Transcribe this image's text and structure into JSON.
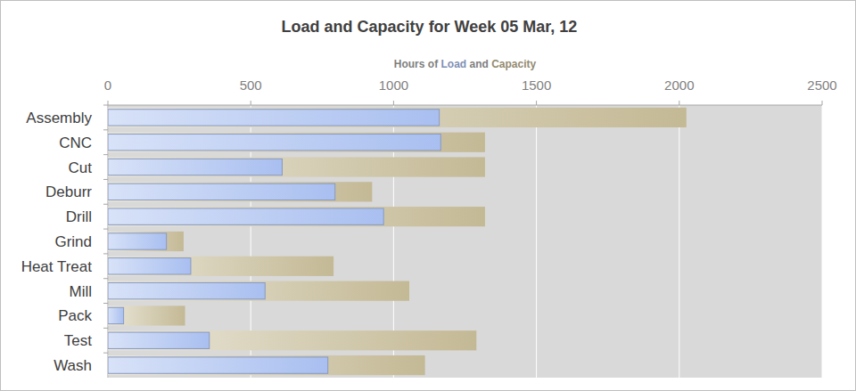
{
  "chart_data": {
    "type": "bar",
    "orientation": "horizontal",
    "title": "Load and Capacity for Week 05 Mar, 12",
    "x_label": "Hours of Load and Capacity",
    "categories": [
      "Assembly",
      "CNC",
      "Cut",
      "Deburr",
      "Drill",
      "Grind",
      "Heat Treat",
      "Mill",
      "Pack",
      "Test",
      "Wash"
    ],
    "series": [
      {
        "name": "Load",
        "color": "#a9bff0",
        "values": [
          1160,
          1165,
          610,
          795,
          965,
          205,
          290,
          550,
          55,
          355,
          770
        ]
      },
      {
        "name": "Capacity",
        "color": "#c4b995",
        "values": [
          2025,
          1320,
          1320,
          925,
          1320,
          265,
          790,
          1055,
          270,
          1290,
          1110
        ]
      }
    ],
    "xlim": [
      0,
      2500
    ],
    "xticks": [
      0,
      500,
      1000,
      1500,
      2000,
      2500
    ],
    "grid": true
  }
}
